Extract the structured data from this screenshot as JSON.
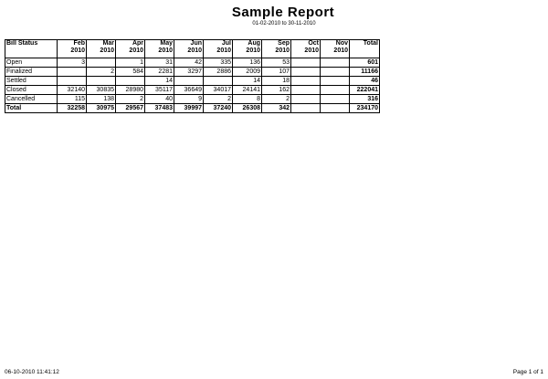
{
  "report": {
    "title": "Sample Report",
    "date_range": "01-02-2010 to 30-11-2010"
  },
  "table": {
    "status_header": "Bill Status",
    "total_header": "Total",
    "months": [
      {
        "month": "Feb",
        "year": "2010"
      },
      {
        "month": "Mar",
        "year": "2010"
      },
      {
        "month": "Apr",
        "year": "2010"
      },
      {
        "month": "May",
        "year": "2010"
      },
      {
        "month": "Jun",
        "year": "2010"
      },
      {
        "month": "Jul",
        "year": "2010"
      },
      {
        "month": "Aug",
        "year": "2010"
      },
      {
        "month": "Sep",
        "year": "2010"
      },
      {
        "month": "Oct",
        "year": "2010"
      },
      {
        "month": "Nov",
        "year": "2010"
      }
    ],
    "rows": [
      {
        "label": "Open",
        "values": [
          "3",
          "",
          "1",
          "31",
          "42",
          "335",
          "136",
          "53",
          "",
          ""
        ],
        "total": "601"
      },
      {
        "label": "Finalized",
        "values": [
          "",
          "2",
          "584",
          "2281",
          "3297",
          "2886",
          "2009",
          "107",
          "",
          ""
        ],
        "total": "11166"
      },
      {
        "label": "Settled",
        "values": [
          "",
          "",
          "",
          "14",
          "",
          "",
          "14",
          "18",
          "",
          ""
        ],
        "total": "46"
      },
      {
        "label": "Closed",
        "values": [
          "32140",
          "30835",
          "28980",
          "35117",
          "36649",
          "34017",
          "24141",
          "162",
          "",
          ""
        ],
        "total": "222041"
      },
      {
        "label": "Cancelled",
        "values": [
          "115",
          "138",
          "2",
          "40",
          "9",
          "2",
          "8",
          "2",
          "",
          ""
        ],
        "total": "316"
      },
      {
        "label": "Total",
        "values": [
          "32258",
          "30975",
          "29567",
          "37483",
          "39997",
          "37240",
          "26308",
          "342",
          "",
          ""
        ],
        "total": "234170"
      }
    ]
  },
  "footer": {
    "timestamp": "06-10-2010 11:41:12",
    "page": "Page 1 of 1"
  }
}
